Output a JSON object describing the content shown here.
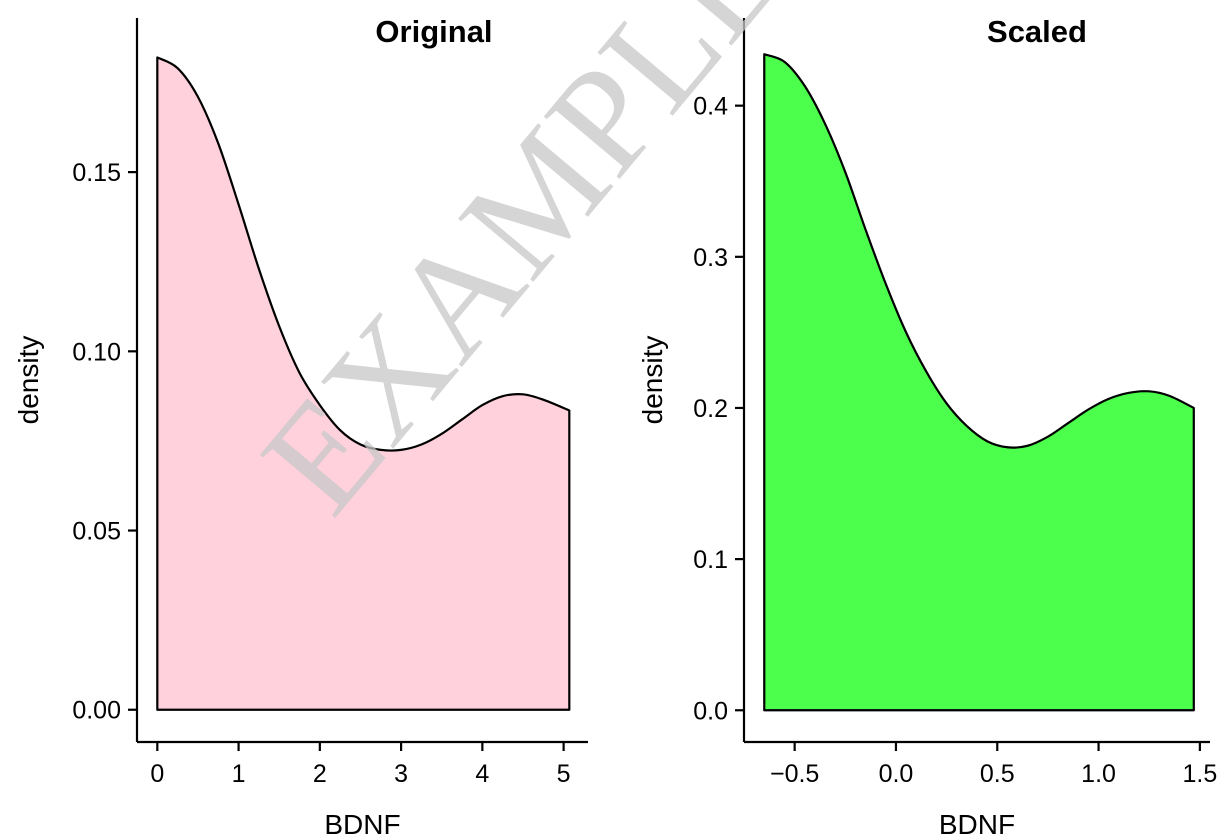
{
  "watermark": "EXAMPLE",
  "chart_data": [
    {
      "type": "area",
      "title": "Original",
      "xlabel": "BDNF",
      "ylabel": "density",
      "fill_color": "#FFD1DC",
      "line_color": "#000000",
      "xlim": [
        -0.25,
        5.3
      ],
      "ylim": [
        -0.009,
        0.193
      ],
      "xticks": [
        0,
        1,
        2,
        3,
        4,
        5
      ],
      "yticks": [
        0.0,
        0.05,
        0.1,
        0.15
      ],
      "yticklabels": [
        "0.00",
        "0.05",
        "0.10",
        "0.15"
      ],
      "x": [
        0.0,
        0.25,
        0.5,
        0.75,
        1.0,
        1.25,
        1.5,
        1.75,
        2.0,
        2.25,
        2.5,
        2.75,
        3.0,
        3.25,
        3.5,
        3.75,
        4.0,
        4.25,
        4.5,
        4.75,
        5.07
      ],
      "y": [
        0.182,
        0.179,
        0.171,
        0.158,
        0.141,
        0.123,
        0.107,
        0.094,
        0.085,
        0.078,
        0.074,
        0.0725,
        0.0725,
        0.074,
        0.077,
        0.081,
        0.085,
        0.0875,
        0.088,
        0.0865,
        0.0835
      ]
    },
    {
      "type": "area",
      "title": "Scaled",
      "xlabel": "BDNF",
      "ylabel": "density",
      "fill_color": "#4CFF4C",
      "line_color": "#000000",
      "xlim": [
        -0.75,
        1.55
      ],
      "ylim": [
        -0.021,
        0.458
      ],
      "xticks": [
        -0.5,
        0.0,
        0.5,
        1.0,
        1.5
      ],
      "xticklabels": [
        "−0.5",
        "0.0",
        "0.5",
        "1.0",
        "1.5"
      ],
      "yticks": [
        0.0,
        0.1,
        0.2,
        0.3,
        0.4
      ],
      "yticklabels": [
        "0.0",
        "0.1",
        "0.2",
        "0.3",
        "0.4"
      ],
      "x": [
        -0.65,
        -0.55,
        -0.45,
        -0.35,
        -0.25,
        -0.15,
        -0.05,
        0.05,
        0.15,
        0.25,
        0.35,
        0.45,
        0.55,
        0.65,
        0.75,
        0.85,
        0.95,
        1.05,
        1.15,
        1.25,
        1.35,
        1.47
      ],
      "y": [
        0.434,
        0.429,
        0.413,
        0.388,
        0.356,
        0.318,
        0.282,
        0.25,
        0.224,
        0.203,
        0.188,
        0.178,
        0.174,
        0.175,
        0.181,
        0.19,
        0.199,
        0.206,
        0.21,
        0.211,
        0.208,
        0.2
      ]
    }
  ]
}
